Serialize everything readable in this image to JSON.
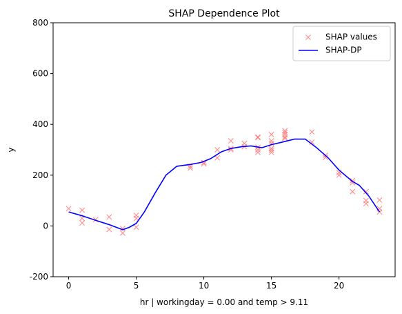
{
  "chart_data": {
    "type": "line",
    "title": "SHAP Dependence Plot",
    "xlabel": "hr | workingday = 0.00 and temp > 9.11",
    "ylabel": "y",
    "xlim": [
      -1.15,
      24.15
    ],
    "ylim": [
      -200,
      800
    ],
    "xticks": [
      0,
      5,
      10,
      15,
      20
    ],
    "yticks": [
      -200,
      0,
      200,
      400,
      600,
      800
    ],
    "grid": false,
    "legend_position": "top-right",
    "series": [
      {
        "name": "SHAP values",
        "kind": "scatter",
        "marker": "x",
        "color": "#ff7070",
        "points": [
          [
            0,
            68
          ],
          [
            1,
            62
          ],
          [
            1,
            12
          ],
          [
            1,
            30
          ],
          [
            2,
            25
          ],
          [
            3,
            35
          ],
          [
            3,
            -14
          ],
          [
            4,
            -10
          ],
          [
            4,
            -28
          ],
          [
            5,
            42
          ],
          [
            5,
            30
          ],
          [
            5,
            -5
          ],
          [
            9,
            235
          ],
          [
            9,
            228
          ],
          [
            10,
            250
          ],
          [
            10,
            245
          ],
          [
            11,
            300
          ],
          [
            11,
            268
          ],
          [
            12,
            335
          ],
          [
            12,
            305
          ],
          [
            12,
            300
          ],
          [
            13,
            325
          ],
          [
            13,
            312
          ],
          [
            14,
            350
          ],
          [
            14,
            348
          ],
          [
            14,
            310
          ],
          [
            14,
            300
          ],
          [
            14,
            290
          ],
          [
            15,
            360
          ],
          [
            15,
            335
          ],
          [
            15,
            325
          ],
          [
            15,
            305
          ],
          [
            15,
            298
          ],
          [
            15,
            290
          ],
          [
            16,
            375
          ],
          [
            16,
            368
          ],
          [
            16,
            360
          ],
          [
            16,
            350
          ],
          [
            16,
            345
          ],
          [
            18,
            370
          ],
          [
            18,
            330
          ],
          [
            19,
            278
          ],
          [
            19,
            270
          ],
          [
            20,
            210
          ],
          [
            20,
            200
          ],
          [
            21,
            178
          ],
          [
            21,
            170
          ],
          [
            21,
            135
          ],
          [
            22,
            135
          ],
          [
            22,
            100
          ],
          [
            22,
            88
          ],
          [
            23,
            102
          ],
          [
            23,
            68
          ],
          [
            23,
            55
          ]
        ]
      },
      {
        "name": "SHAP-DP",
        "kind": "line",
        "color": "#0000ff",
        "points": [
          [
            0,
            55
          ],
          [
            1,
            40
          ],
          [
            2,
            22
          ],
          [
            3,
            5
          ],
          [
            4,
            -15
          ],
          [
            4.5,
            -5
          ],
          [
            5,
            10
          ],
          [
            5.6,
            55
          ],
          [
            6.4,
            130
          ],
          [
            7.2,
            200
          ],
          [
            8,
            235
          ],
          [
            9,
            242
          ],
          [
            9.8,
            250
          ],
          [
            10.5,
            265
          ],
          [
            11.3,
            292
          ],
          [
            12,
            305
          ],
          [
            12.8,
            312
          ],
          [
            13.5,
            315
          ],
          [
            14.3,
            308
          ],
          [
            15,
            320
          ],
          [
            15.8,
            330
          ],
          [
            16.7,
            342
          ],
          [
            17.5,
            342
          ],
          [
            18.3,
            310
          ],
          [
            19.2,
            268
          ],
          [
            20,
            220
          ],
          [
            21,
            175
          ],
          [
            21.5,
            160
          ],
          [
            22.2,
            118
          ],
          [
            23,
            55
          ]
        ]
      }
    ]
  }
}
